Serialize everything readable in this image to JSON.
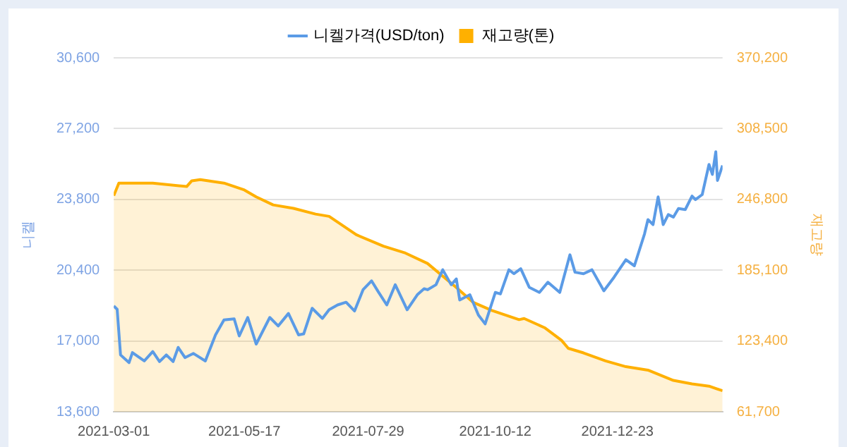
{
  "chart_data": {
    "type": "line",
    "ylabel": "니켈",
    "y2label": "재고량",
    "legend": "top",
    "grid": "y",
    "marker": "none",
    "line_style": "solid",
    "xlim": [
      "2021-03-01",
      "2022-02-23"
    ],
    "xticks": [
      "2021-03-01",
      "2021-05-17",
      "2021-07-29",
      "2021-10-12",
      "2021-12-23"
    ],
    "ylim": [
      13600,
      30600
    ],
    "yticks": [
      {
        "value": 13600,
        "label": "13,600"
      },
      {
        "value": 17000,
        "label": "17,000"
      },
      {
        "value": 20400,
        "label": "20,400"
      },
      {
        "value": 23800,
        "label": "23,800"
      },
      {
        "value": 27200,
        "label": "27,200"
      },
      {
        "value": 30600,
        "label": "30,600"
      }
    ],
    "y2lim": [
      61700,
      370200
    ],
    "y2ticks": [
      {
        "value": 61700,
        "label": "61,700"
      },
      {
        "value": 123400,
        "label": "123,400"
      },
      {
        "value": 185100,
        "label": "185,100"
      },
      {
        "value": 246800,
        "label": "246,800"
      },
      {
        "value": 308500,
        "label": "308,500"
      },
      {
        "value": 370200,
        "label": "370,200"
      }
    ],
    "series": [
      {
        "name": "니켈가격(USD/ton)",
        "type": "line",
        "color": "#5b9be6",
        "x": [
          "2021-03-01",
          "2021-03-03",
          "2021-03-05",
          "2021-03-10",
          "2021-03-12",
          "2021-03-19",
          "2021-03-24",
          "2021-03-28",
          "2021-04-01",
          "2021-04-05",
          "2021-04-08",
          "2021-04-12",
          "2021-04-17",
          "2021-04-24",
          "2021-04-30",
          "2021-05-05",
          "2021-05-11",
          "2021-05-14",
          "2021-05-19",
          "2021-05-24",
          "2021-06-01",
          "2021-06-06",
          "2021-06-12",
          "2021-06-18",
          "2021-06-21",
          "2021-06-26",
          "2021-07-02",
          "2021-07-06",
          "2021-07-11",
          "2021-07-16",
          "2021-07-21",
          "2021-07-26",
          "2021-07-31",
          "2021-08-04",
          "2021-08-09",
          "2021-08-14",
          "2021-08-21",
          "2021-08-27",
          "2021-08-31",
          "2021-09-02",
          "2021-09-07",
          "2021-09-11",
          "2021-09-16",
          "2021-09-19",
          "2021-09-21",
          "2021-09-27",
          "2021-10-02",
          "2021-10-06",
          "2021-10-12",
          "2021-10-15",
          "2021-10-20",
          "2021-10-23",
          "2021-10-27",
          "2021-11-01",
          "2021-11-07",
          "2021-11-12",
          "2021-11-19",
          "2021-11-25",
          "2021-11-28",
          "2021-12-03",
          "2021-12-08",
          "2021-12-15",
          "2021-12-21",
          "2021-12-28",
          "2022-01-02",
          "2022-01-08",
          "2022-01-10",
          "2022-01-13",
          "2022-01-16",
          "2022-01-19",
          "2022-01-22",
          "2022-01-25",
          "2022-01-28",
          "2022-02-01",
          "2022-02-05",
          "2022-02-07",
          "2022-02-11",
          "2022-02-15",
          "2022-02-17",
          "2022-02-19",
          "2022-02-20",
          "2022-02-23"
        ],
        "values": [
          18680,
          18520,
          16330,
          15960,
          16440,
          16040,
          16490,
          16010,
          16330,
          16010,
          16690,
          16200,
          16400,
          16040,
          17290,
          18010,
          18060,
          17240,
          18130,
          16850,
          18130,
          17720,
          18320,
          17290,
          17340,
          18570,
          18080,
          18500,
          18730,
          18860,
          18440,
          19460,
          19890,
          19360,
          18730,
          19700,
          18500,
          19220,
          19510,
          19460,
          19700,
          20420,
          19700,
          19980,
          18970,
          19220,
          18250,
          17820,
          19330,
          19260,
          20420,
          20230,
          20470,
          19580,
          19330,
          19820,
          19330,
          21140,
          20300,
          20230,
          20420,
          19410,
          20060,
          20900,
          20610,
          22150,
          22830,
          22590,
          23920,
          22590,
          23070,
          22950,
          23360,
          23310,
          23960,
          23790,
          24030,
          25480,
          25000,
          26090,
          24710,
          25430
        ]
      },
      {
        "name": "재고량(톤)",
        "type": "area",
        "axis": "y2",
        "color": "#ffb000",
        "x": [
          "2021-03-01",
          "2021-03-04",
          "2021-03-24",
          "2021-04-13",
          "2021-04-16",
          "2021-04-21",
          "2021-05-05",
          "2021-05-17",
          "2021-05-24",
          "2021-06-03",
          "2021-06-15",
          "2021-06-28",
          "2021-07-06",
          "2021-07-22",
          "2021-08-07",
          "2021-08-20",
          "2021-09-02",
          "2021-09-19",
          "2021-09-29",
          "2021-10-10",
          "2021-10-26",
          "2021-10-29",
          "2021-11-10",
          "2021-11-20",
          "2021-11-24",
          "2021-12-03",
          "2021-12-16",
          "2021-12-28",
          "2022-01-10",
          "2022-01-25",
          "2022-02-05",
          "2022-02-15",
          "2022-02-23"
        ],
        "values": [
          250000,
          261000,
          261000,
          258000,
          263000,
          264000,
          261000,
          255000,
          249000,
          242000,
          239000,
          234000,
          232000,
          216000,
          206000,
          200000,
          191000,
          170000,
          157000,
          150000,
          142000,
          143000,
          135000,
          124000,
          117000,
          113000,
          106000,
          101000,
          98000,
          89000,
          86000,
          84000,
          80000
        ]
      }
    ]
  }
}
